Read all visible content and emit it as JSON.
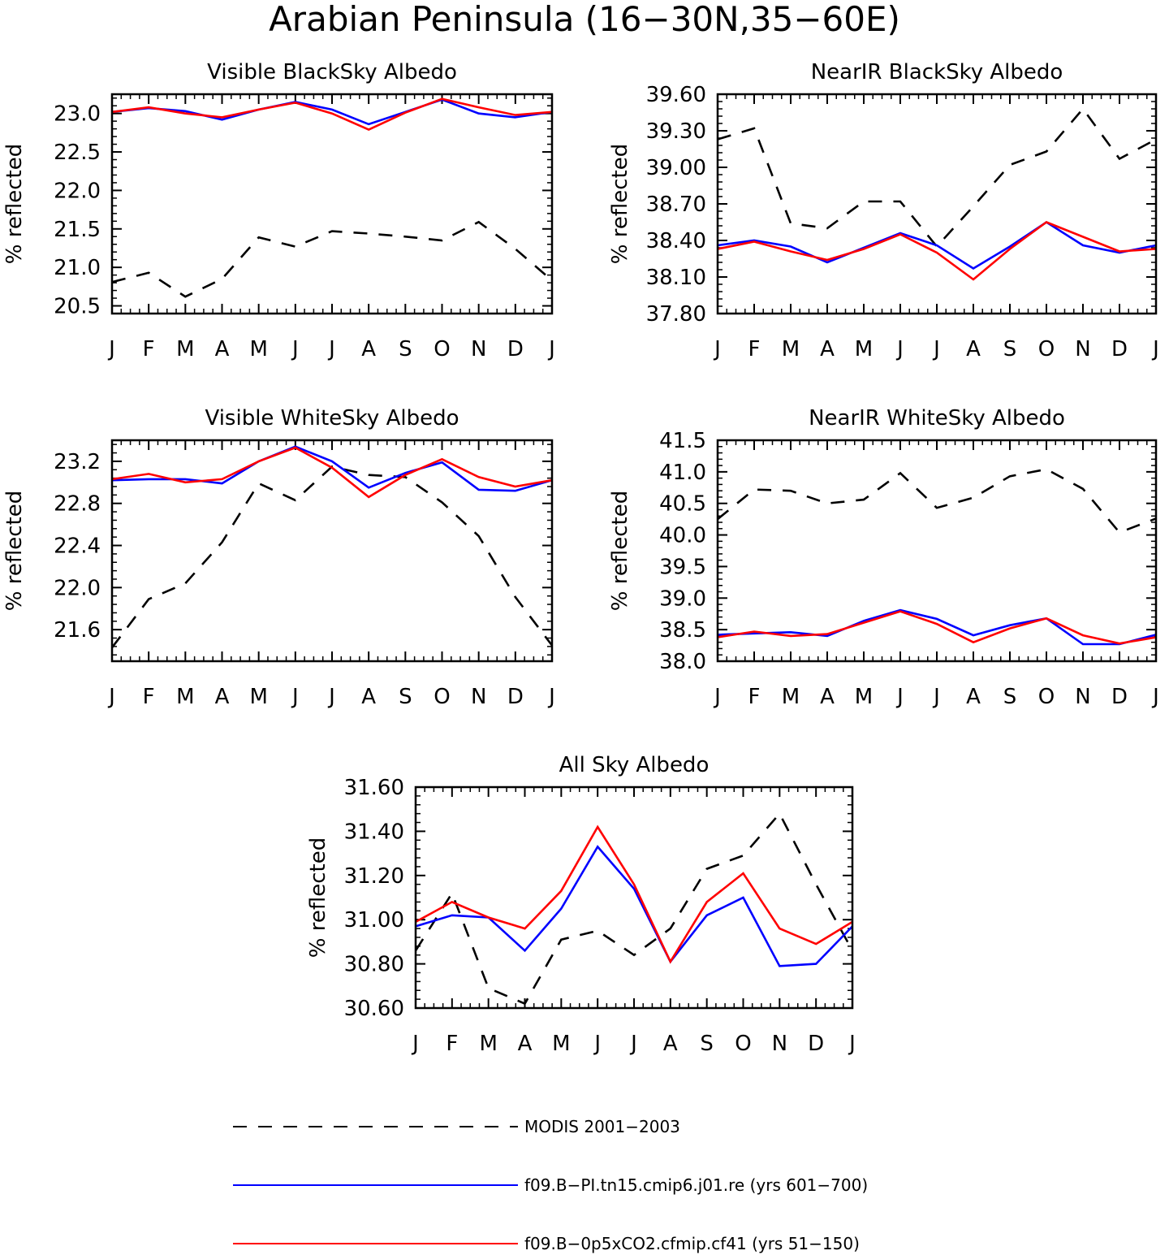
{
  "figure": {
    "title": "Arabian Peninsula (16−30N,35−60E)"
  },
  "legend": [
    {
      "label": "MODIS 2001−2003",
      "color": "#000000",
      "dash": "dashed"
    },
    {
      "label": "f09.B−PI.tn15.cmip6.j01.re (yrs 601−700)",
      "color": "#0000ff",
      "dash": "solid"
    },
    {
      "label": "f09.B−0p5xCO2.cfmip.cf41 (yrs 51−150)",
      "color": "#ff0000",
      "dash": "solid"
    }
  ],
  "chart_data": [
    {
      "type": "line",
      "title": "Visible BlackSky Albedo",
      "ylabel": "% reflected",
      "categories": [
        "J",
        "F",
        "M",
        "A",
        "M",
        "J",
        "J",
        "A",
        "S",
        "O",
        "N",
        "D",
        "J"
      ],
      "ylim": [
        20.4,
        23.25
      ],
      "yticks": [
        "20.5",
        "21.0",
        "21.5",
        "22.0",
        "22.5",
        "23.0"
      ],
      "series": [
        {
          "name": "MODIS 2001−2003",
          "values": [
            20.81,
            20.93,
            20.62,
            20.85,
            21.39,
            21.27,
            21.47,
            21.44,
            21.4,
            21.35,
            21.59,
            21.24,
            20.83
          ]
        },
        {
          "name": "f09.B−PI.tn15.cmip6.j01.re (yrs 601−700)",
          "values": [
            23.02,
            23.07,
            23.03,
            22.92,
            23.05,
            23.15,
            23.05,
            22.86,
            23.02,
            23.18,
            23.0,
            22.95,
            23.02
          ]
        },
        {
          "name": "f09.B−0p5xCO2.cfmip.cf41 (yrs 51−150)",
          "values": [
            23.02,
            23.08,
            23.0,
            22.95,
            23.05,
            23.14,
            23.0,
            22.79,
            23.01,
            23.19,
            23.08,
            22.98,
            23.02
          ]
        }
      ]
    },
    {
      "type": "line",
      "title": "NearIR BlackSky Albedo",
      "ylabel": "% reflected",
      "categories": [
        "J",
        "F",
        "M",
        "A",
        "M",
        "J",
        "J",
        "A",
        "S",
        "O",
        "N",
        "D",
        "J"
      ],
      "ylim": [
        37.8,
        39.6
      ],
      "yticks": [
        "37.80",
        "38.10",
        "38.40",
        "38.70",
        "39.00",
        "39.30",
        "39.60"
      ],
      "series": [
        {
          "name": "MODIS 2001−2003",
          "values": [
            39.23,
            39.32,
            38.54,
            38.5,
            38.72,
            38.72,
            38.35,
            38.68,
            39.02,
            39.13,
            39.48,
            39.07,
            39.23
          ]
        },
        {
          "name": "f09.B−PI.tn15.cmip6.j01.re (yrs 601−700)",
          "values": [
            38.36,
            38.4,
            38.35,
            38.22,
            38.34,
            38.46,
            38.36,
            38.17,
            38.35,
            38.55,
            38.36,
            38.3,
            38.36
          ]
        },
        {
          "name": "f09.B−0p5xCO2.cfmip.cf41 (yrs 51−150)",
          "values": [
            38.33,
            38.39,
            38.31,
            38.24,
            38.33,
            38.45,
            38.3,
            38.08,
            38.33,
            38.55,
            38.43,
            38.31,
            38.33
          ]
        }
      ]
    },
    {
      "type": "line",
      "title": "Visible WhiteSky Albedo",
      "ylabel": "% reflected",
      "categories": [
        "J",
        "F",
        "M",
        "A",
        "M",
        "J",
        "J",
        "A",
        "S",
        "O",
        "N",
        "D",
        "J"
      ],
      "ylim": [
        21.3,
        23.4
      ],
      "yticks": [
        "21.6",
        "22.0",
        "22.4",
        "22.8",
        "23.2"
      ],
      "series": [
        {
          "name": "MODIS 2001−2003",
          "values": [
            21.43,
            21.89,
            22.04,
            22.43,
            22.99,
            22.83,
            23.15,
            23.07,
            23.05,
            22.81,
            22.49,
            21.91,
            21.45
          ]
        },
        {
          "name": "f09.B−PI.tn15.cmip6.j01.re (yrs 601−700)",
          "values": [
            23.02,
            23.03,
            23.03,
            22.99,
            23.2,
            23.34,
            23.2,
            22.95,
            23.09,
            23.19,
            22.93,
            22.92,
            23.02
          ]
        },
        {
          "name": "f09.B−0p5xCO2.cfmip.cf41 (yrs 51−150)",
          "values": [
            23.03,
            23.08,
            23.0,
            23.03,
            23.2,
            23.33,
            23.14,
            22.86,
            23.07,
            23.22,
            23.05,
            22.96,
            23.02
          ]
        }
      ]
    },
    {
      "type": "line",
      "title": "NearIR WhiteSky Albedo",
      "ylabel": "% reflected",
      "categories": [
        "J",
        "F",
        "M",
        "A",
        "M",
        "J",
        "J",
        "A",
        "S",
        "O",
        "N",
        "D",
        "J"
      ],
      "ylim": [
        38.0,
        41.5
      ],
      "yticks": [
        "38.0",
        "38.5",
        "39.0",
        "39.5",
        "40.0",
        "40.5",
        "41.0",
        "41.5"
      ],
      "series": [
        {
          "name": "MODIS 2001−2003",
          "values": [
            40.25,
            40.72,
            40.7,
            40.5,
            40.56,
            40.98,
            40.43,
            40.59,
            40.93,
            41.04,
            40.73,
            40.04,
            40.26
          ]
        },
        {
          "name": "f09.B−PI.tn15.cmip6.j01.re (yrs 601−700)",
          "values": [
            38.42,
            38.44,
            38.46,
            38.4,
            38.64,
            38.81,
            38.67,
            38.41,
            38.57,
            38.68,
            38.27,
            38.27,
            38.42
          ]
        },
        {
          "name": "f09.B−0p5xCO2.cfmip.cf41 (yrs 51−150)",
          "values": [
            38.38,
            38.47,
            38.4,
            38.43,
            38.61,
            38.79,
            38.59,
            38.3,
            38.52,
            38.68,
            38.41,
            38.28,
            38.38
          ]
        }
      ]
    },
    {
      "type": "line",
      "title": "All Sky Albedo",
      "ylabel": "% reflected",
      "categories": [
        "J",
        "F",
        "M",
        "A",
        "M",
        "J",
        "J",
        "A",
        "S",
        "O",
        "N",
        "D",
        "J"
      ],
      "ylim": [
        30.6,
        31.6
      ],
      "yticks": [
        "30.60",
        "30.80",
        "31.00",
        "31.20",
        "31.40",
        "31.60"
      ],
      "series": [
        {
          "name": "MODIS 2001−2003",
          "values": [
            30.86,
            31.12,
            30.69,
            30.62,
            30.91,
            30.95,
            30.84,
            30.96,
            31.23,
            31.29,
            31.48,
            31.16,
            30.86
          ]
        },
        {
          "name": "f09.B−PI.tn15.cmip6.j01.re (yrs 601−700)",
          "values": [
            30.97,
            31.02,
            31.01,
            30.86,
            31.05,
            31.33,
            31.14,
            30.81,
            31.02,
            31.1,
            30.79,
            30.8,
            30.97
          ]
        },
        {
          "name": "f09.B−0p5xCO2.cfmip.cf41 (yrs 51−150)",
          "values": [
            30.99,
            31.08,
            31.01,
            30.96,
            31.13,
            31.42,
            31.16,
            30.81,
            31.08,
            31.21,
            30.96,
            30.89,
            30.99
          ]
        }
      ]
    }
  ]
}
